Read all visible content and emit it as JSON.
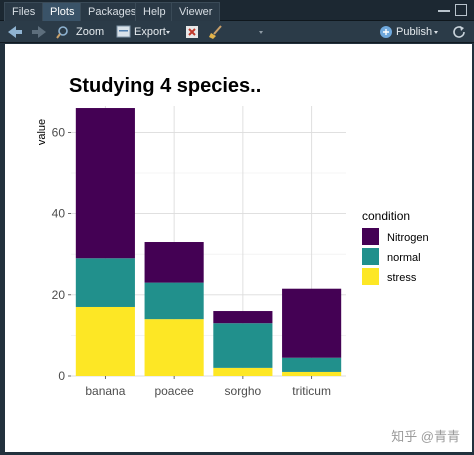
{
  "tabs": [
    {
      "label": "Files",
      "active": false
    },
    {
      "label": "Plots",
      "active": true
    },
    {
      "label": "Packages",
      "active": false
    },
    {
      "label": "Help",
      "active": false
    },
    {
      "label": "Viewer",
      "active": false
    }
  ],
  "toolbar": {
    "zoom_label": "Zoom",
    "export_label": "Export",
    "publish_label": "Publish"
  },
  "watermark": "知乎 @青青",
  "colors": {
    "Nitrogen": "#440154",
    "normal": "#21908c",
    "stress": "#fde725"
  },
  "chart_data": {
    "type": "bar",
    "stacked": true,
    "title": "Studying 4 species..",
    "xlabel": "",
    "ylabel": "value",
    "categories": [
      "banana",
      "poacee",
      "sorgho",
      "triticum"
    ],
    "series": [
      {
        "name": "stress",
        "values": [
          17,
          14,
          2,
          1
        ]
      },
      {
        "name": "normal",
        "values": [
          12,
          9,
          11,
          3.5
        ]
      },
      {
        "name": "Nitrogen",
        "values": [
          37,
          10,
          3,
          17
        ]
      }
    ],
    "ylim": [
      0,
      66.5
    ],
    "yticks": [
      "0",
      "20",
      "40",
      "60"
    ],
    "legend_title": "condition",
    "legend_entries": [
      "Nitrogen",
      "normal",
      "stress"
    ],
    "legend_position": "right",
    "grid": true
  }
}
